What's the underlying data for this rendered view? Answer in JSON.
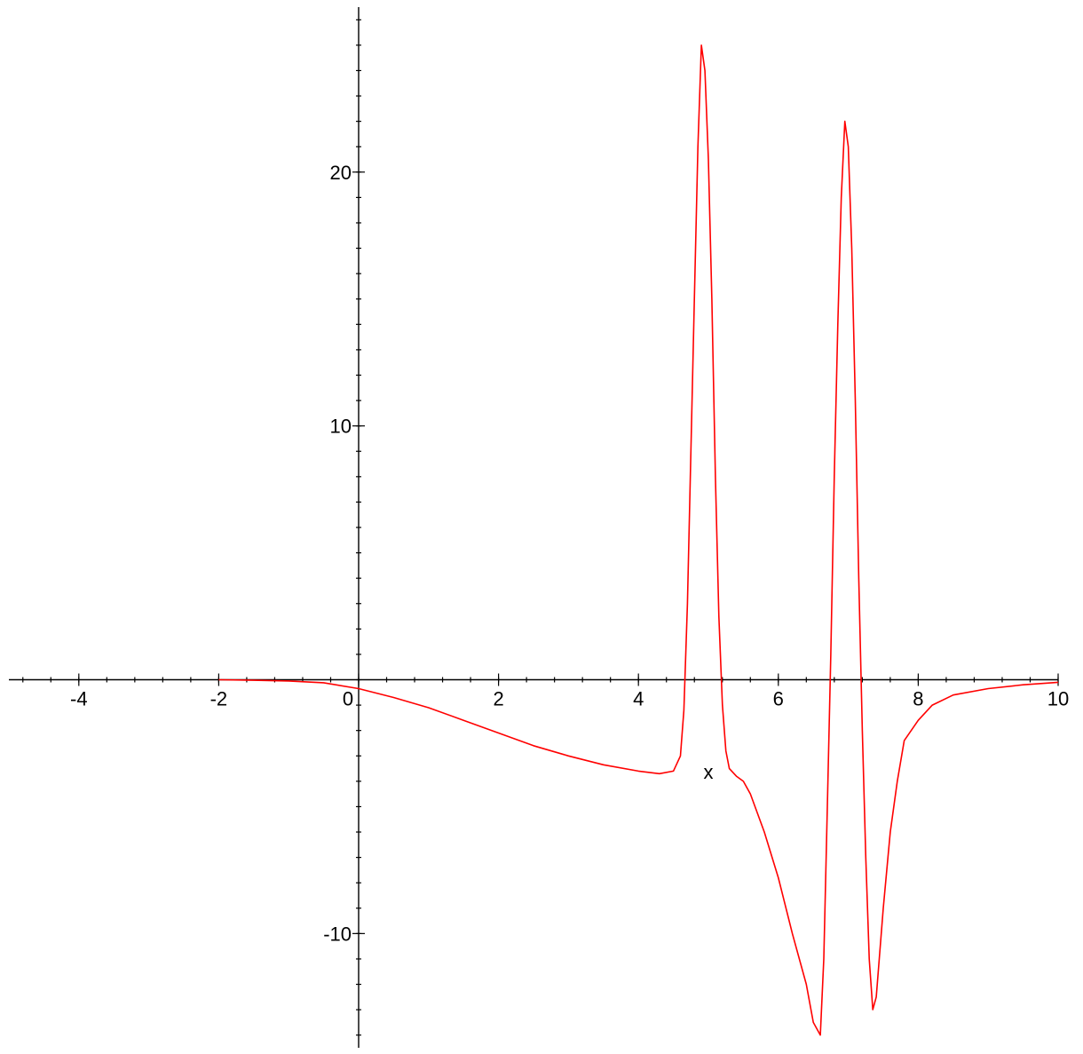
{
  "chart_data": {
    "type": "line",
    "title": "",
    "xlabel": "x",
    "ylabel": "",
    "xlim": [
      -5,
      10
    ],
    "ylim": [
      -14.5,
      26.5
    ],
    "grid": false,
    "legend": "none",
    "x_ticks": [
      -4,
      -2,
      0,
      2,
      4,
      6,
      8,
      10
    ],
    "x_tick_labels": [
      "-4",
      "-2",
      "0",
      "2",
      "4",
      "6",
      "8",
      "10"
    ],
    "y_ticks": [
      -10,
      10,
      20
    ],
    "y_tick_labels": [
      "-10",
      "10",
      "20"
    ],
    "series": [
      {
        "color": "#ff0000",
        "x": [
          -2.0,
          -1.5,
          -1.0,
          -0.5,
          0.0,
          0.5,
          1.0,
          1.5,
          2.0,
          2.5,
          3.0,
          3.5,
          4.0,
          4.3,
          4.5,
          4.6,
          4.65,
          4.7,
          4.75,
          4.8,
          4.85,
          4.9,
          4.95,
          5.0,
          5.05,
          5.1,
          5.15,
          5.2,
          5.25,
          5.3,
          5.4,
          5.5,
          5.6,
          5.8,
          6.0,
          6.2,
          6.4,
          6.5,
          6.6,
          6.65,
          6.7,
          6.75,
          6.8,
          6.85,
          6.9,
          6.95,
          7.0,
          7.05,
          7.1,
          7.15,
          7.2,
          7.25,
          7.3,
          7.35,
          7.4,
          7.5,
          7.6,
          7.7,
          7.8,
          8.0,
          8.2,
          8.5,
          9.0,
          9.5,
          10.0
        ],
        "y": [
          0.0,
          -0.02,
          -0.05,
          -0.12,
          -0.35,
          -0.7,
          -1.1,
          -1.6,
          -2.1,
          -2.6,
          -3.0,
          -3.35,
          -3.6,
          -3.7,
          -3.6,
          -3.0,
          -1.2,
          3.0,
          9.0,
          15.0,
          21.0,
          25.0,
          24.0,
          20.5,
          15.0,
          8.0,
          2.5,
          -1.0,
          -2.8,
          -3.5,
          -3.8,
          -4.0,
          -4.5,
          -6.0,
          -7.8,
          -10.0,
          -12.0,
          -13.5,
          -14.0,
          -11.0,
          -5.0,
          1.0,
          8.0,
          14.0,
          19.0,
          22.0,
          21.0,
          17.0,
          11.0,
          4.0,
          -2.0,
          -7.0,
          -11.0,
          -13.0,
          -12.5,
          -9.0,
          -6.0,
          -4.0,
          -2.4,
          -1.6,
          -1.0,
          -0.6,
          -0.35,
          -0.2,
          -0.1
        ]
      }
    ]
  }
}
